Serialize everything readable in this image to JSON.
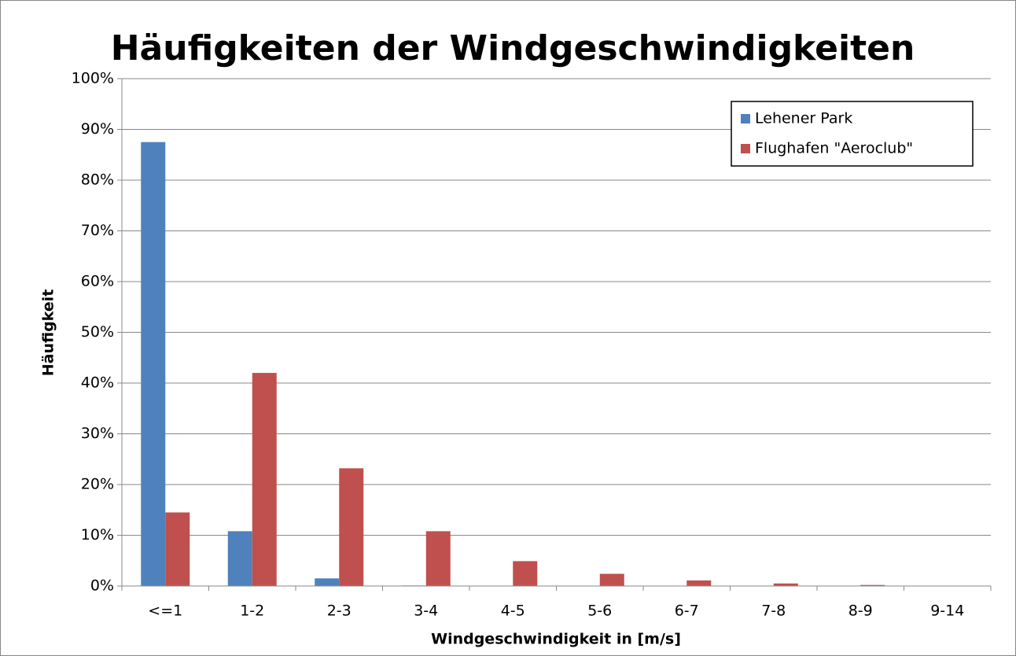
{
  "chart_data": {
    "type": "bar",
    "title": "Häufigkeiten der Windgeschwindigkeiten",
    "x_label": "Windgeschwindigkeit in [m/s]",
    "y_label": "Häufigkeit",
    "categories": [
      "<=1",
      "1-2",
      "2-3",
      "3-4",
      "4-5",
      "5-6",
      "6-7",
      "7-8",
      "8-9",
      "9-14"
    ],
    "series": [
      {
        "name": "Lehener Park",
        "color": "#4f81bd",
        "values": [
          87.5,
          10.8,
          1.5,
          0.1,
          0,
          0,
          0,
          0,
          0,
          0
        ]
      },
      {
        "name": "Flughafen \"Aeroclub\"",
        "color": "#c0504d",
        "values": [
          14.5,
          42,
          23.2,
          10.8,
          4.9,
          2.4,
          1.1,
          0.5,
          0.2,
          0.05
        ]
      }
    ],
    "ylim": [
      0,
      100
    ],
    "yticks": [
      {
        "value": 0,
        "label": "0%"
      },
      {
        "value": 10,
        "label": "10%"
      },
      {
        "value": 20,
        "label": "20%"
      },
      {
        "value": 30,
        "label": "30%"
      },
      {
        "value": 40,
        "label": "40%"
      },
      {
        "value": 50,
        "label": "50%"
      },
      {
        "value": 60,
        "label": "60%"
      },
      {
        "value": 70,
        "label": "70%"
      },
      {
        "value": 80,
        "label": "80%"
      },
      {
        "value": 90,
        "label": "90%"
      },
      {
        "value": 100,
        "label": "100%"
      }
    ],
    "grid": true,
    "legend": "upper right"
  }
}
